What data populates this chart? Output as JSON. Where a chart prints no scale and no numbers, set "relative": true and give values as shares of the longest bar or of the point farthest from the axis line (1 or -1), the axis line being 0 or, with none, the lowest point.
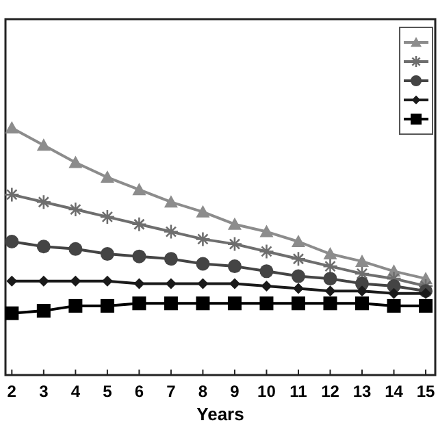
{
  "chart_data": {
    "type": "line",
    "xlabel": "Years",
    "x": [
      2,
      3,
      4,
      5,
      6,
      7,
      8,
      9,
      10,
      11,
      12,
      13,
      14,
      15
    ],
    "xlim": [
      1.8,
      15.3
    ],
    "xticks": [
      2,
      3,
      4,
      5,
      6,
      7,
      8,
      9,
      10,
      11,
      12,
      13,
      14,
      15
    ],
    "relative": true,
    "grid": false,
    "series": [
      {
        "color": "#8c8c8c",
        "marker": "triangle",
        "values": [
          1,
          0.93,
          0.86,
          0.8,
          0.75,
          0.7,
          0.66,
          0.61,
          0.58,
          0.54,
          0.49,
          0.46,
          0.42,
          0.39
        ]
      },
      {
        "color": "#6e6e6e",
        "marker": "cross",
        "values": [
          0.73,
          0.7,
          0.67,
          0.64,
          0.61,
          0.58,
          0.55,
          0.53,
          0.5,
          0.47,
          0.44,
          0.41,
          0.39,
          0.36
        ]
      },
      {
        "color": "#444444",
        "marker": "circle",
        "values": [
          0.54,
          0.52,
          0.51,
          0.49,
          0.48,
          0.47,
          0.45,
          0.44,
          0.42,
          0.4,
          0.39,
          0.37,
          0.36,
          0.34
        ]
      },
      {
        "color": "#1a1a1a",
        "marker": "diamond",
        "values": [
          0.38,
          0.38,
          0.38,
          0.38,
          0.37,
          0.37,
          0.37,
          0.37,
          0.36,
          0.35,
          0.34,
          0.34,
          0.33,
          0.33
        ]
      },
      {
        "color": "#000000",
        "marker": "square",
        "values": [
          0.25,
          0.26,
          0.28,
          0.28,
          0.29,
          0.29,
          0.29,
          0.29,
          0.29,
          0.29,
          0.29,
          0.29,
          0.28,
          0.28
        ]
      }
    ]
  }
}
